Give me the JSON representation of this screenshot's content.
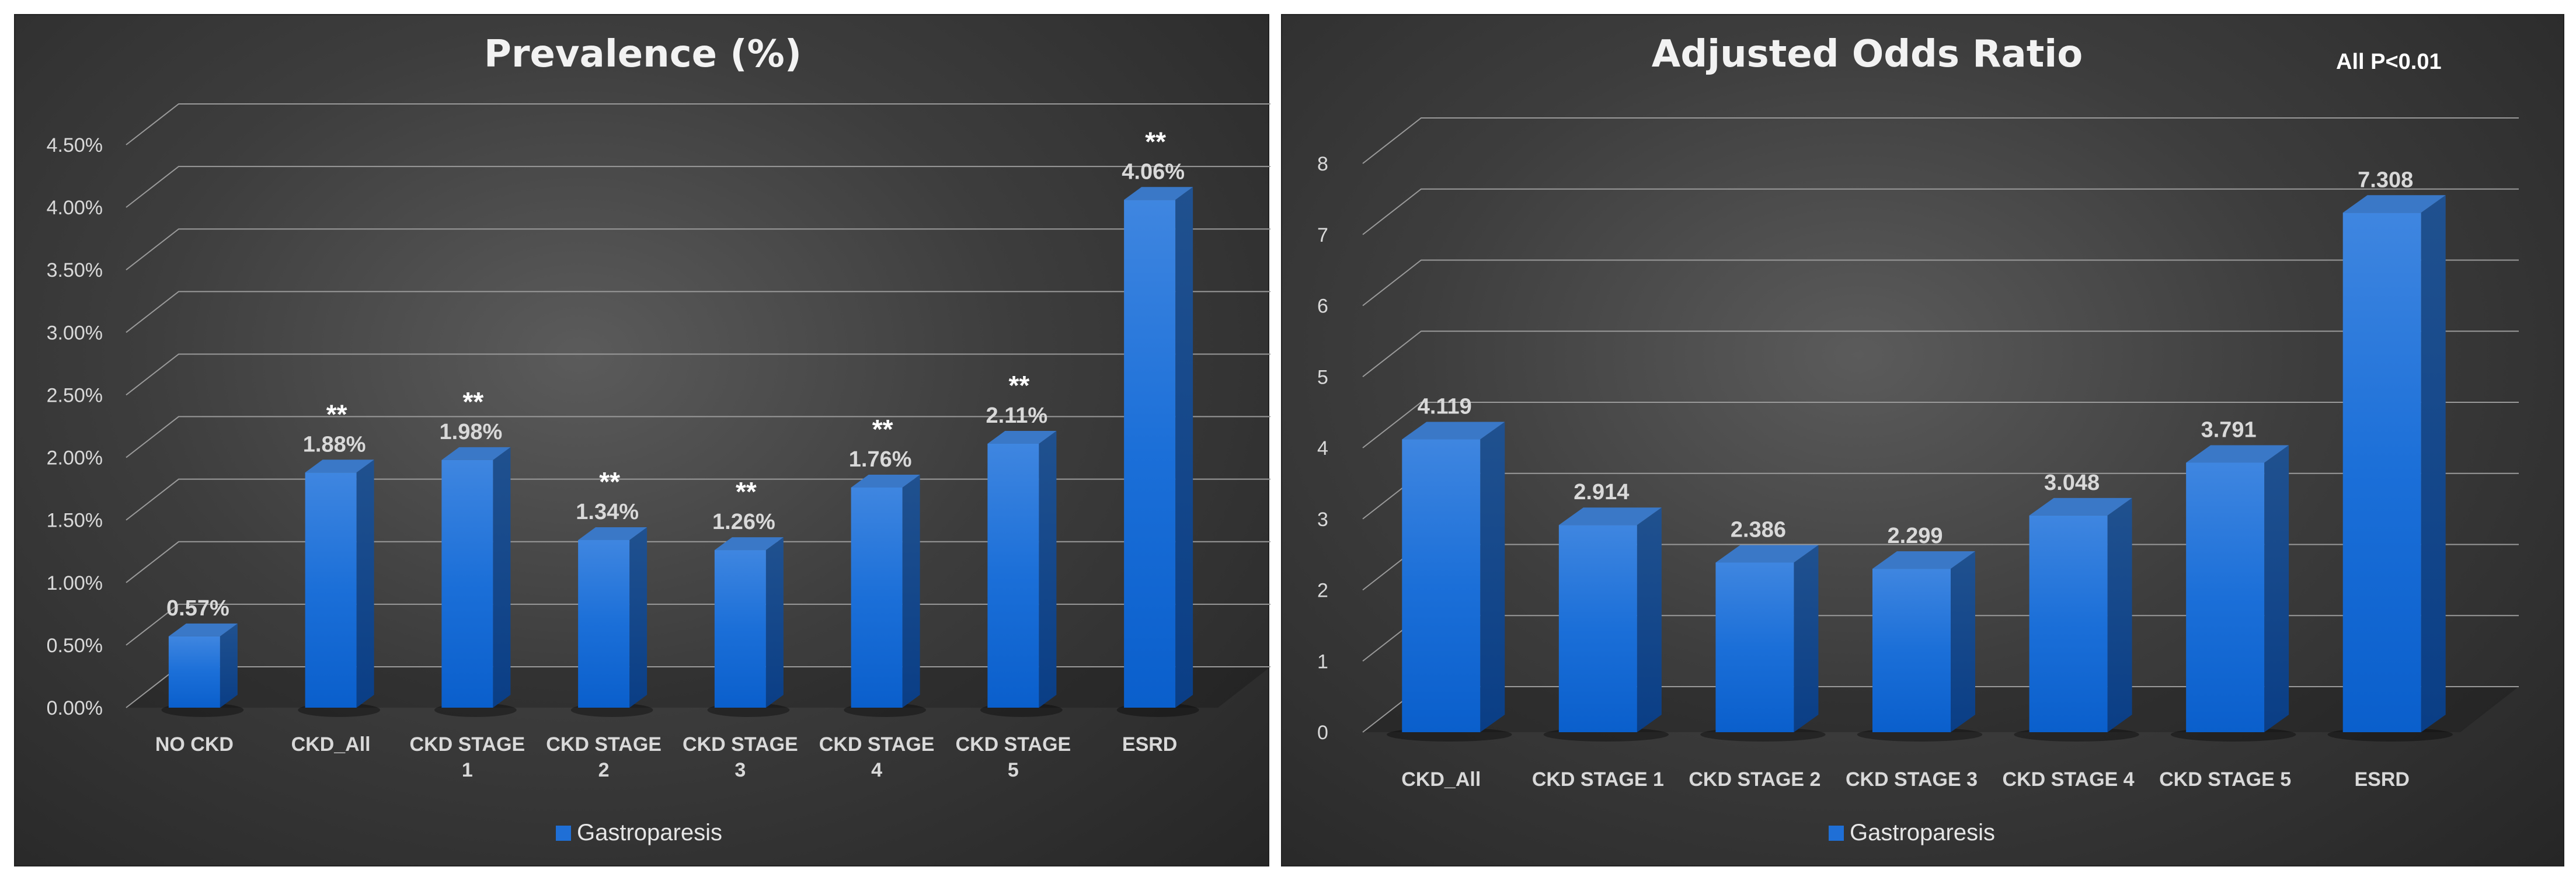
{
  "chart_data": [
    {
      "type": "bar",
      "title": "Prevalence (%)",
      "categories": [
        "NO CKD",
        "CKD_All",
        "CKD STAGE 1",
        "CKD STAGE 2",
        "CKD STAGE 3",
        "CKD STAGE 4",
        "CKD STAGE 5",
        "ESRD"
      ],
      "series": [
        {
          "name": "Gastroparesis",
          "values": [
            0.57,
            1.88,
            1.98,
            1.34,
            1.26,
            1.76,
            2.11,
            4.06
          ]
        }
      ],
      "data_labels": [
        "0.57%",
        "1.88%",
        "1.98%",
        "1.34%",
        "1.26%",
        "1.76%",
        "2.11%",
        "4.06%"
      ],
      "significance": [
        "",
        "**",
        "**",
        "**",
        "**",
        "**",
        "**",
        "**"
      ],
      "y_ticks": [
        "0.00%",
        "0.50%",
        "1.00%",
        "1.50%",
        "2.00%",
        "2.50%",
        "3.00%",
        "3.50%",
        "4.00%",
        "4.50%"
      ],
      "ylim": [
        0,
        4.5
      ],
      "grid": true,
      "legend_position": "bottom",
      "bar_color": "#1f6fd6"
    },
    {
      "type": "bar",
      "title": "Adjusted Odds Ratio",
      "annotation": "All  P<0.01",
      "categories": [
        "CKD_All",
        "CKD STAGE 1",
        "CKD STAGE 2",
        "CKD STAGE 3",
        "CKD STAGE 4",
        "CKD STAGE 5",
        "ESRD"
      ],
      "series": [
        {
          "name": "Gastroparesis",
          "values": [
            4.119,
            2.914,
            2.386,
            2.299,
            3.048,
            3.791,
            7.308
          ]
        }
      ],
      "data_labels": [
        "4.119",
        "2.914",
        "2.386",
        "2.299",
        "3.048",
        "3.791",
        "7.308"
      ],
      "y_ticks": [
        "0",
        "1",
        "2",
        "3",
        "4",
        "5",
        "6",
        "7",
        "8"
      ],
      "ylim": [
        0,
        8
      ],
      "grid": true,
      "legend_position": "bottom",
      "bar_color": "#1f6fd6"
    }
  ]
}
